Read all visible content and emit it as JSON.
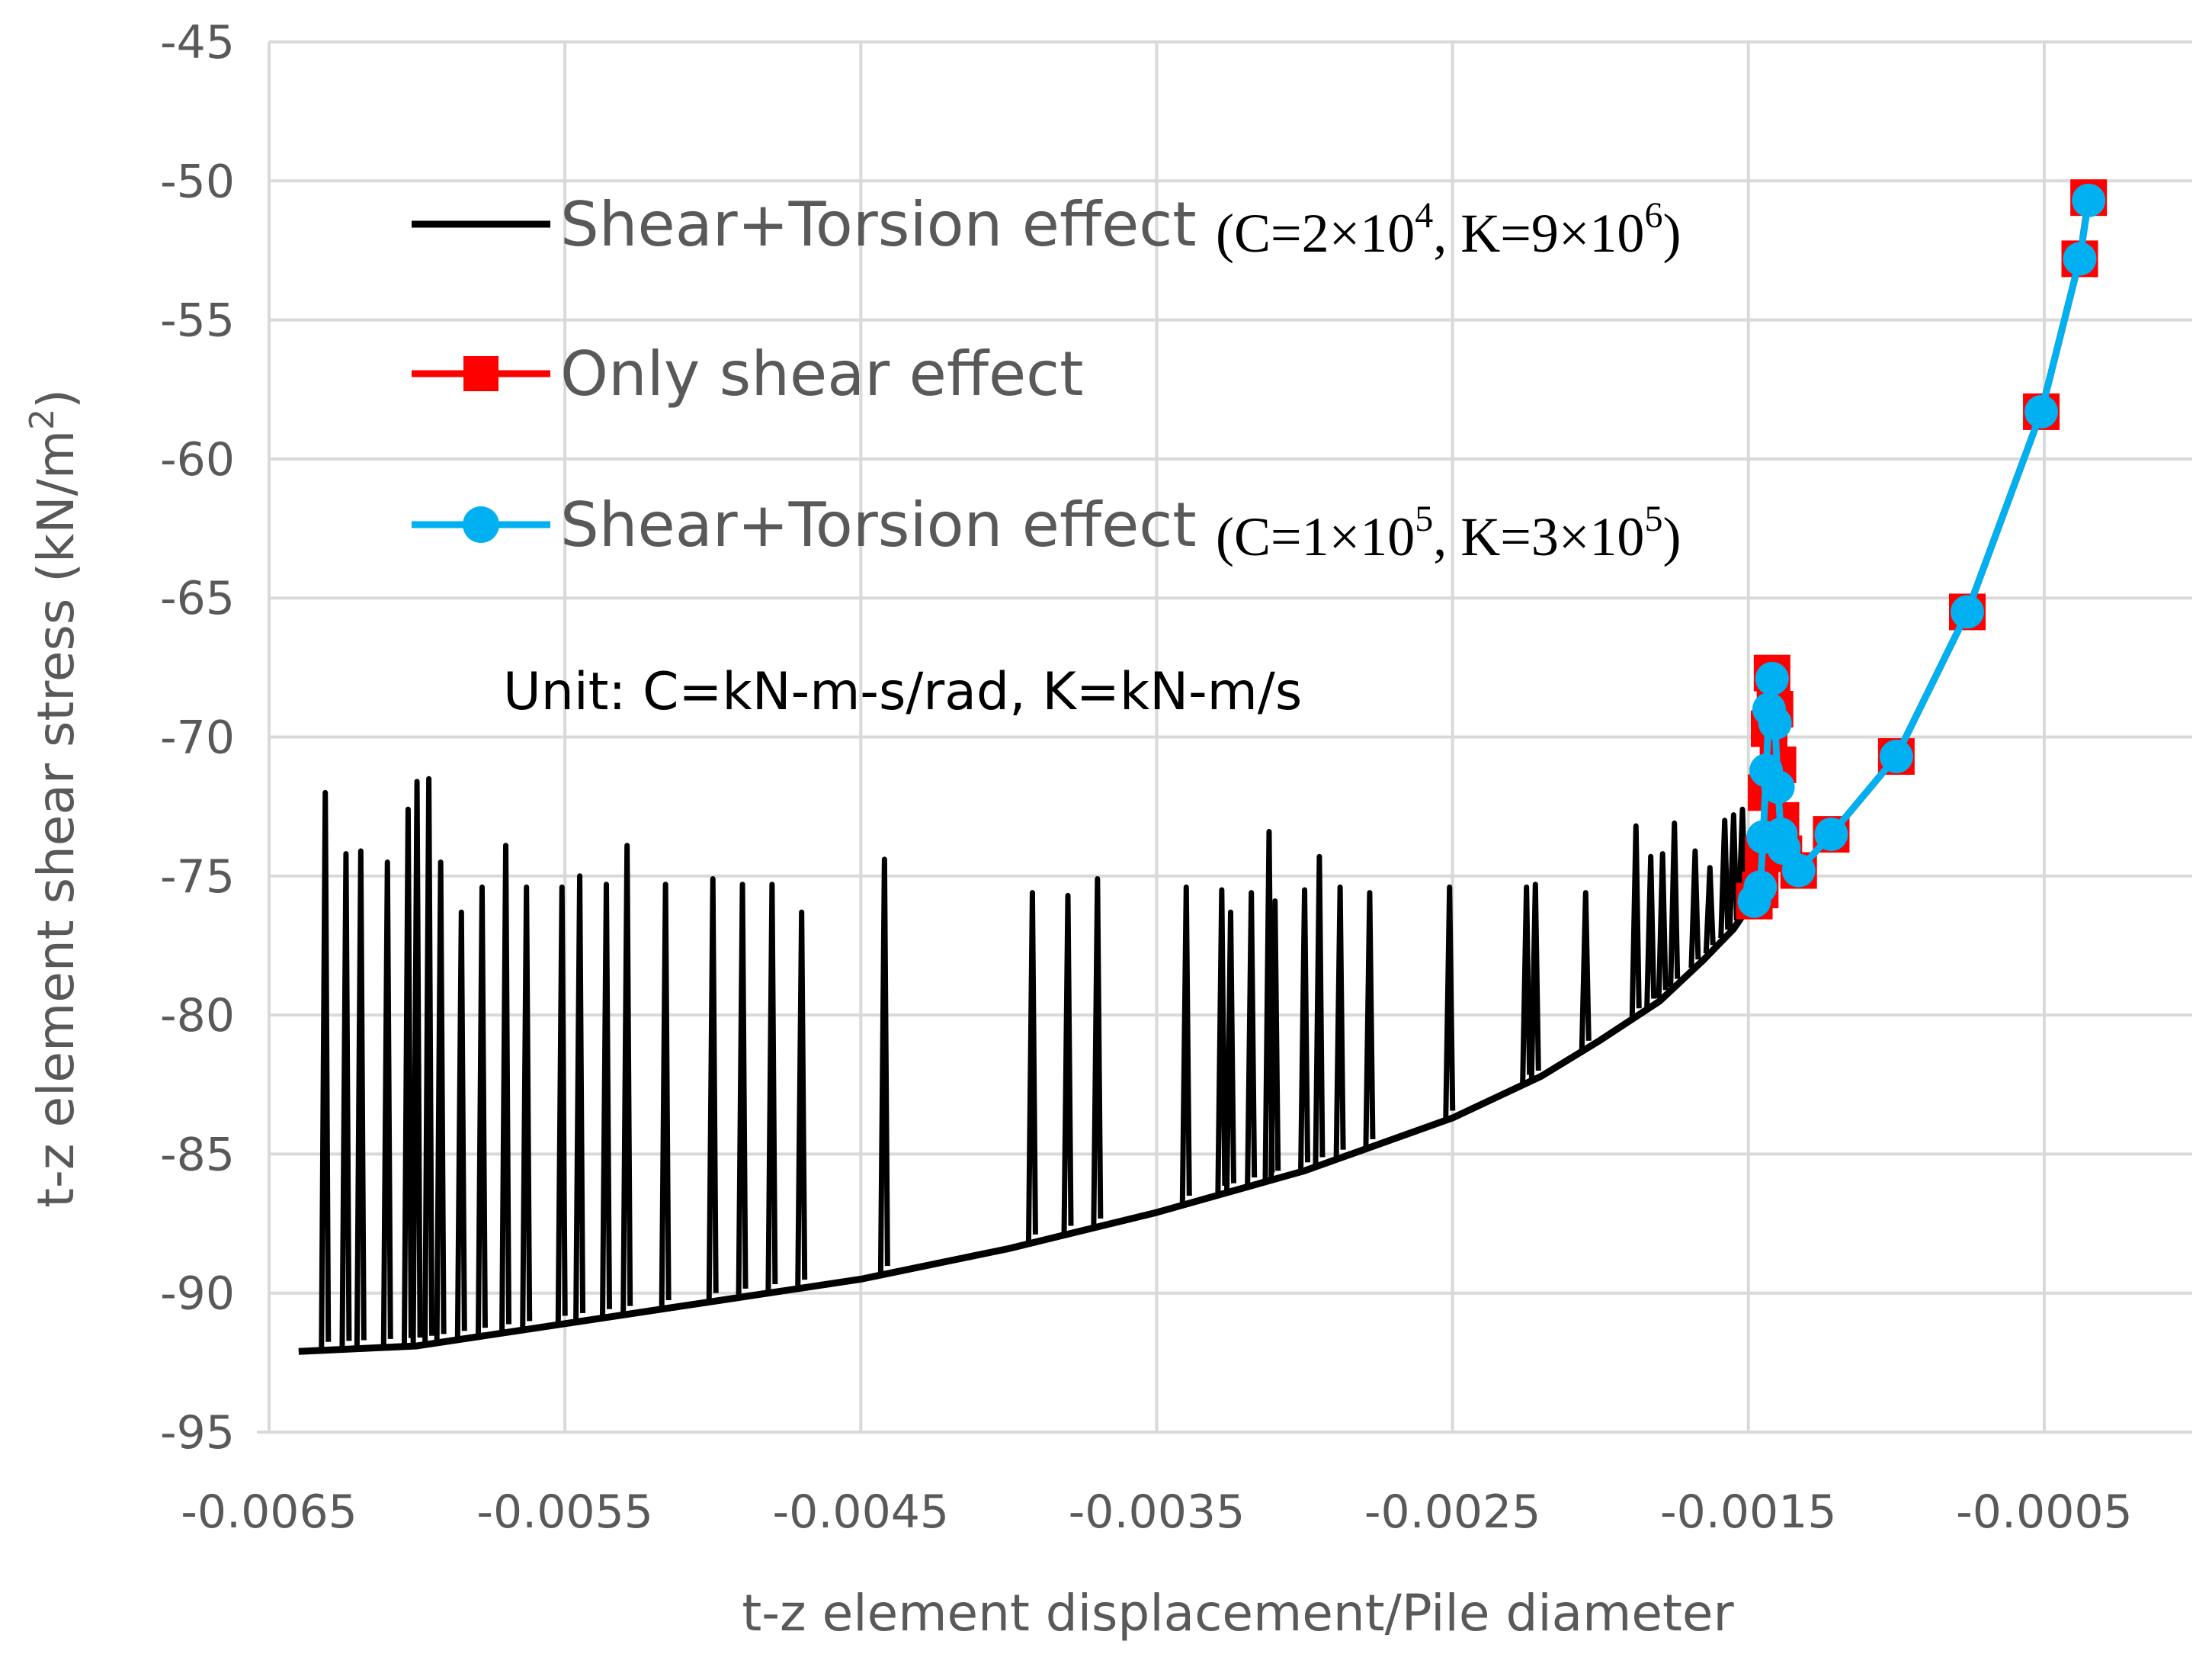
{
  "chart_data": {
    "type": "line",
    "title": "",
    "xlabel": "t-z element displacement/Pile diameter",
    "ylabel": "t-z element shear stress (kN/m",
    "ylabel_superscript": "2",
    "ylabel_close": ")",
    "xlim": [
      -0.0065,
      0.0
    ],
    "ylim": [
      -95,
      -45
    ],
    "x_ticks": [
      -0.0065,
      -0.0055,
      -0.0045,
      -0.0035,
      -0.0025,
      -0.0015,
      -0.0005
    ],
    "x_tick_labels": [
      "-0.0065",
      "-0.0055",
      "-0.0045",
      "-0.0035",
      "-0.0025",
      "-0.0015",
      "-0.0005"
    ],
    "y_ticks": [
      -45,
      -50,
      -55,
      -60,
      -65,
      -70,
      -75,
      -80,
      -85,
      -90,
      -95
    ],
    "y_tick_labels": [
      "-45",
      "-50",
      "-55",
      "-60",
      "-65",
      "-70",
      "-75",
      "-80",
      "-85",
      "-90",
      "-95"
    ],
    "grid": true,
    "legend_position": "top-left",
    "series": [
      {
        "name": "Shear+Torsion effect",
        "params": "(C=2×10^4, K=9×10^6)",
        "color": "#000000",
        "marker": "none",
        "envelope": [
          [
            -0.0064,
            -92.1
          ],
          [
            -0.006,
            -91.9
          ],
          [
            -0.0055,
            -91.1
          ],
          [
            -0.005,
            -90.3
          ],
          [
            -0.0045,
            -89.5
          ],
          [
            -0.004,
            -88.4
          ],
          [
            -0.0035,
            -87.1
          ],
          [
            -0.003,
            -85.6
          ],
          [
            -0.0025,
            -83.7
          ],
          [
            -0.0022,
            -82.2
          ],
          [
            -0.002,
            -80.9
          ],
          [
            -0.0018,
            -79.5
          ],
          [
            -0.00165,
            -78.0
          ],
          [
            -0.00155,
            -76.9
          ],
          [
            -0.00148,
            -75.8
          ]
        ],
        "spikes": [
          [
            -0.00631,
            -72.0
          ],
          [
            -0.00624,
            -74.2
          ],
          [
            -0.00619,
            -74.1
          ],
          [
            -0.0061,
            -74.5
          ],
          [
            -0.00603,
            -72.6
          ],
          [
            -0.006,
            -71.6
          ],
          [
            -0.00596,
            -71.5
          ],
          [
            -0.00592,
            -74.5
          ],
          [
            -0.00585,
            -76.3
          ],
          [
            -0.00578,
            -75.4
          ],
          [
            -0.0057,
            -73.9
          ],
          [
            -0.00563,
            -75.4
          ],
          [
            -0.00551,
            -75.4
          ],
          [
            -0.00545,
            -75.0
          ],
          [
            -0.00536,
            -75.3
          ],
          [
            -0.00529,
            -73.9
          ],
          [
            -0.00516,
            -75.3
          ],
          [
            -0.005,
            -75.1
          ],
          [
            -0.0049,
            -75.3
          ],
          [
            -0.0048,
            -75.3
          ],
          [
            -0.0047,
            -76.3
          ],
          [
            -0.00442,
            -74.4
          ],
          [
            -0.00392,
            -75.6
          ],
          [
            -0.0038,
            -75.7
          ],
          [
            -0.0037,
            -75.1
          ],
          [
            -0.0034,
            -75.4
          ],
          [
            -0.00328,
            -75.5
          ],
          [
            -0.00325,
            -76.3
          ],
          [
            -0.00318,
            -75.6
          ],
          [
            -0.00312,
            -73.4
          ],
          [
            -0.0031,
            -75.9
          ],
          [
            -0.003,
            -75.5
          ],
          [
            -0.00295,
            -74.3
          ],
          [
            -0.00288,
            -75.4
          ],
          [
            -0.00278,
            -75.6
          ],
          [
            -0.00251,
            -75.4
          ],
          [
            -0.00225,
            -75.4
          ],
          [
            -0.00222,
            -75.3
          ],
          [
            -0.00205,
            -75.6
          ],
          [
            -0.00188,
            -73.2
          ],
          [
            -0.00183,
            -74.3
          ],
          [
            -0.00179,
            -74.2
          ],
          [
            -0.00175,
            -73.1
          ],
          [
            -0.00168,
            -74.1
          ],
          [
            -0.00163,
            -74.7
          ],
          [
            -0.00158,
            -73.0
          ],
          [
            -0.00155,
            -72.8
          ],
          [
            -0.00152,
            -72.6
          ]
        ]
      },
      {
        "name": "Only shear effect",
        "params": "",
        "color": "#FF0000",
        "marker": "square",
        "points": [
          [
            -0.00148,
            -75.9
          ],
          [
            -0.00146,
            -75.5
          ],
          [
            -0.00145,
            -74.2
          ],
          [
            -0.00144,
            -72.0
          ],
          [
            -0.00143,
            -69.7
          ],
          [
            -0.00142,
            -67.7
          ],
          [
            -0.00141,
            -69.0
          ],
          [
            -0.0014,
            -71.0
          ],
          [
            -0.00139,
            -73.0
          ],
          [
            -0.00138,
            -74.2
          ],
          [
            -0.00133,
            -74.8
          ],
          [
            -0.00122,
            -73.5
          ],
          [
            -0.001,
            -70.7
          ],
          [
            -0.00076,
            -65.5
          ],
          [
            -0.00051,
            -58.3
          ],
          [
            -0.00038,
            -52.8
          ],
          [
            -0.00035,
            -50.6
          ]
        ]
      },
      {
        "name": "Shear+Torsion effect",
        "params": "(C=1×10^5, K=3×10^5)",
        "color": "#00B0F0",
        "marker": "circle",
        "points": [
          [
            -0.00148,
            -75.9
          ],
          [
            -0.00146,
            -75.4
          ],
          [
            -0.00145,
            -73.6
          ],
          [
            -0.00144,
            -71.2
          ],
          [
            -0.00143,
            -69.0
          ],
          [
            -0.00142,
            -67.9
          ],
          [
            -0.00141,
            -69.5
          ],
          [
            -0.0014,
            -71.8
          ],
          [
            -0.00139,
            -73.5
          ],
          [
            -0.00138,
            -74.0
          ],
          [
            -0.00133,
            -74.8
          ],
          [
            -0.00122,
            -73.5
          ],
          [
            -0.001,
            -70.7
          ],
          [
            -0.00076,
            -65.5
          ],
          [
            -0.00051,
            -58.3
          ],
          [
            -0.00038,
            -52.8
          ],
          [
            -0.00035,
            -50.7
          ]
        ]
      }
    ],
    "legend": [
      {
        "label": "Shear+Torsion effect",
        "params_prefix": "(C=2×10",
        "exp1": "4",
        "params_mid": ", K=9×10",
        "exp2": "6",
        "params_suffix": ")"
      },
      {
        "label": "Only shear effect"
      },
      {
        "label": "Shear+Torsion effect",
        "params_prefix": "(C=1×10",
        "exp1": "5",
        "params_mid": ", K=3×10",
        "exp2": "5",
        "params_suffix": ")"
      }
    ],
    "annotation": "Unit: C=kN-m-s/rad, K=kN-m/s"
  }
}
